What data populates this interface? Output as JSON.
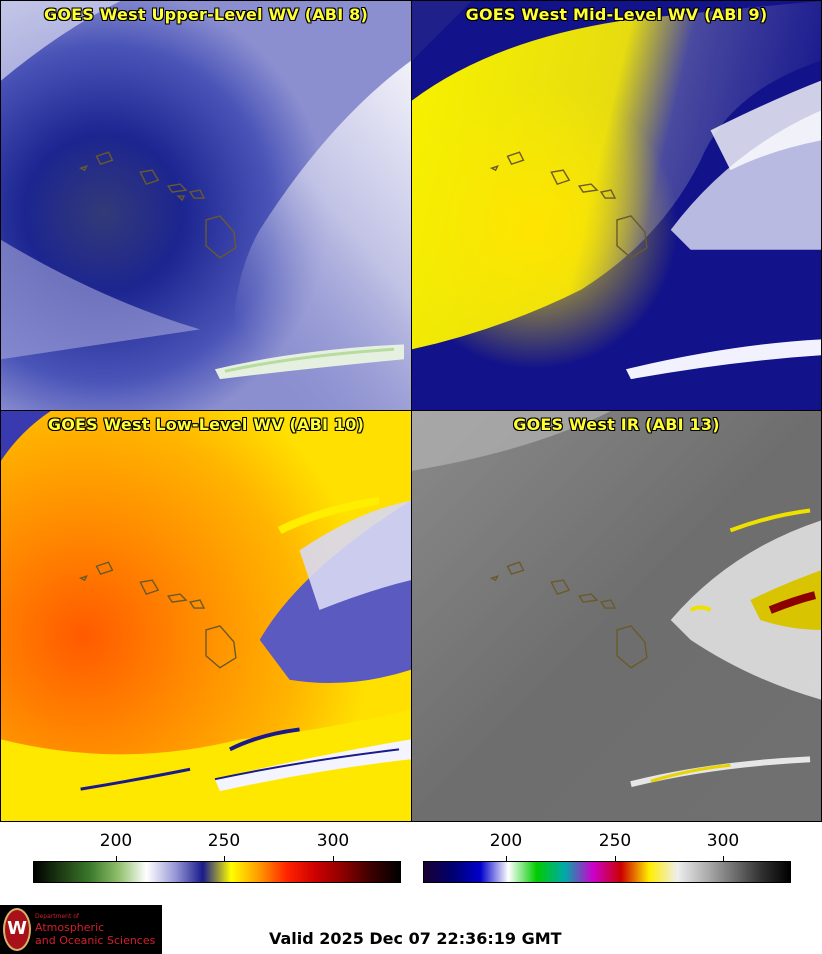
{
  "panels": {
    "upper": {
      "title": "GOES West Upper-Level WV (ABI 8)"
    },
    "mid": {
      "title": "GOES West Mid-Level WV (ABI 9)"
    },
    "low": {
      "title": "GOES West Low-Level WV (ABI 10)"
    },
    "ir": {
      "title": "GOES West IR (ABI 13)"
    }
  },
  "colorbars": {
    "wv": {
      "ticks": [
        "200",
        "250",
        "300"
      ],
      "stops": [
        "#000000",
        "#1f3d14",
        "#3c7a2c",
        "#8fbf6a",
        "#ffffff",
        "#9a9ad8",
        "#1a1a8c",
        "#ffff00",
        "#ff9900",
        "#ff2200",
        "#cc0000",
        "#8b0000",
        "#3a0000",
        "#000000"
      ]
    },
    "ir": {
      "ticks": [
        "200",
        "250",
        "300"
      ],
      "stops": [
        "#1a0033",
        "#00006e",
        "#0000cc",
        "#ffffff",
        "#00cc00",
        "#00aaaa",
        "#cc00cc",
        "#cc0000",
        "#ffee00",
        "#eeeeee",
        "#b0b0b0",
        "#707070",
        "#303030",
        "#000000"
      ]
    }
  },
  "logo": {
    "small_text": "Department of",
    "line1": "Atmospheric",
    "line2": "and Oceanic Sciences",
    "seal_letter": "W"
  },
  "footer": {
    "valid": "Valid 2025 Dec 07 22:36:19 GMT"
  }
}
